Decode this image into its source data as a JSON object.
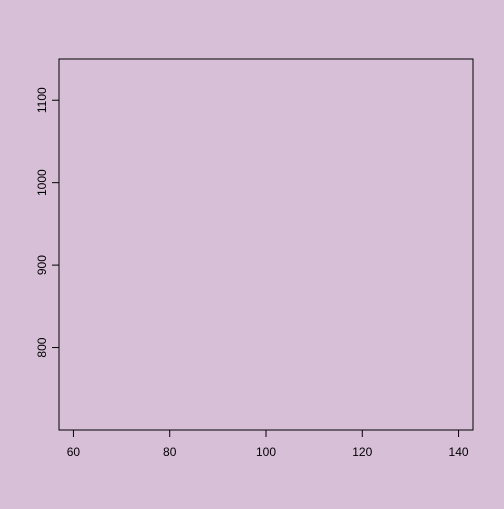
{
  "chart_data": {
    "type": "scatter",
    "title": "",
    "xlabel": "",
    "ylabel": "",
    "xlim": [
      57,
      143
    ],
    "ylim": [
      700,
      1150
    ],
    "x_ticks": [
      60,
      80,
      100,
      120,
      140
    ],
    "y_ticks": [
      800,
      900,
      1000,
      1100
    ],
    "x_tick_labels": [
      "60",
      "80",
      "100",
      "120",
      "140"
    ],
    "y_tick_labels": [
      "800",
      "900",
      "1000",
      "1100"
    ],
    "series": [
      {
        "x": [],
        "y": []
      }
    ],
    "grid": false,
    "background_color": "#D8BFD8",
    "axis_color": "#000000"
  }
}
